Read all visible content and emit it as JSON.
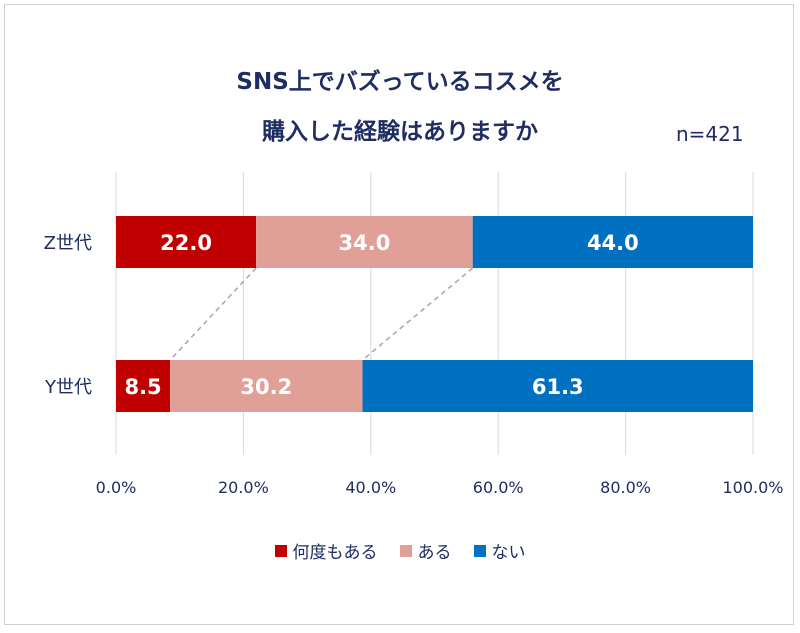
{
  "chart_data": {
    "type": "bar",
    "orientation": "horizontal",
    "stacked": true,
    "title_lines": [
      "SNS上でバズっているコスメを",
      "購入した経験はありますか"
    ],
    "note": "n=421",
    "categories": [
      "Z世代",
      "Y世代"
    ],
    "series": [
      {
        "name": "何度もある",
        "color": "#c00000",
        "values": [
          22.0,
          8.5
        ]
      },
      {
        "name": "ある",
        "color": "#e1a097",
        "values": [
          34.0,
          30.2
        ]
      },
      {
        "name": "ない",
        "color": "#0070c0",
        "values": [
          44.0,
          61.3
        ]
      }
    ],
    "xlim": [
      0,
      100
    ],
    "xticks": [
      "0.0%",
      "20.0%",
      "40.0%",
      "60.0%",
      "80.0%",
      "100.0%"
    ],
    "grid": true,
    "legend": "bottom",
    "connector_lines": true
  }
}
